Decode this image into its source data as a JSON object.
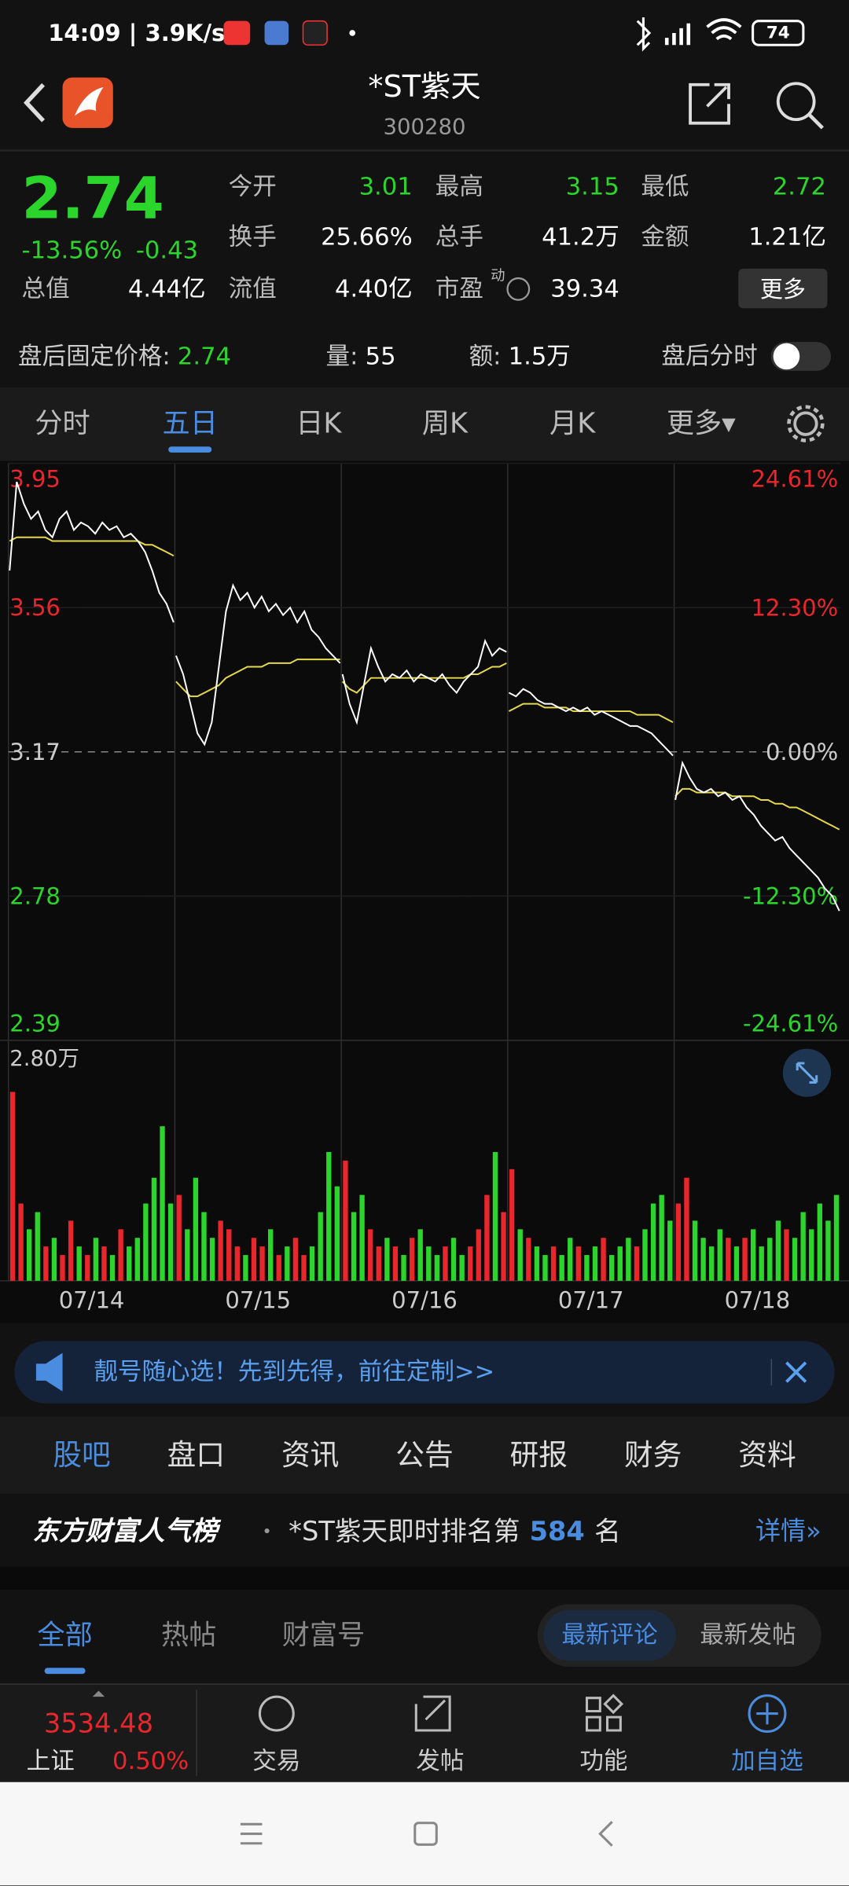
{
  "status_bar": {
    "time": "14:09 | 3.9K/s",
    "battery": "74"
  },
  "header": {
    "title": "*ST紫天",
    "code": "300280"
  },
  "quote": {
    "price": "2.74",
    "change_pct": "-13.56%",
    "change": "-0.43",
    "total_label": "总值",
    "total_value": "4.44亿",
    "fields": [
      {
        "label": "今开",
        "value": "3.01",
        "color": "#2bd52b"
      },
      {
        "label": "最高",
        "value": "3.15",
        "color": "#2bd52b"
      },
      {
        "label": "最低",
        "value": "2.72",
        "color": "#2bd52b"
      },
      {
        "label": "换手",
        "value": "25.66%",
        "color": "#ffffff"
      },
      {
        "label": "总手",
        "value": "41.2万",
        "color": "#ffffff"
      },
      {
        "label": "金额",
        "value": "1.21亿",
        "color": "#ffffff"
      },
      {
        "label": "流值",
        "value": "4.40亿",
        "color": "#ffffff"
      },
      {
        "label": "市盈",
        "value": "39.34",
        "color": "#ffffff"
      }
    ],
    "pe_mark": "动",
    "more": "更多"
  },
  "after_hours": {
    "items": [
      {
        "label": "盘后固定价格:",
        "value": "2.74",
        "color": "#2bd52b"
      },
      {
        "label": "量:",
        "value": "55",
        "color": "#ffffff"
      },
      {
        "label": "额:",
        "value": "1.5万",
        "color": "#ffffff"
      }
    ],
    "toggle_label": "盘后分时"
  },
  "chart_tabs": {
    "items": [
      "分时",
      "五日",
      "日K",
      "周K",
      "月K",
      "更多▾"
    ],
    "active": 1
  },
  "chart_data": {
    "type": "intraday",
    "ylim": [
      2.39,
      3.95
    ],
    "yticks": [
      3.95,
      3.56,
      3.17,
      2.78,
      2.39
    ],
    "y2lim": [
      -24.61,
      24.61
    ],
    "y2ticks": [
      {
        "value": 24.61,
        "label": "24.61%"
      },
      {
        "value": 12.3,
        "label": "12.30%"
      },
      {
        "value": 0,
        "label": "0.00%"
      },
      {
        "value": -12.3,
        "label": "-12.30%"
      },
      {
        "value": -24.61,
        "label": "-24.61%"
      }
    ],
    "volume_ylim": [
      0,
      28000
    ],
    "volume_yticks": [
      {
        "value": 28000,
        "label": "2.80万"
      }
    ],
    "price_color": "#ffffff",
    "avg_color": "#e6d84a",
    "rise_color": "#e8262b",
    "fall_color": "#2bd52b",
    "days": [
      {
        "label": "07/14",
        "price": [
          3.66,
          3.9,
          3.84,
          3.8,
          3.82,
          3.77,
          3.75,
          3.8,
          3.82,
          3.77,
          3.79,
          3.78,
          3.76,
          3.79,
          3.77,
          3.78,
          3.75,
          3.76,
          3.74,
          3.71,
          3.66,
          3.6,
          3.57,
          3.52
        ],
        "avg": [
          3.74,
          3.75,
          3.75,
          3.75,
          3.75,
          3.75,
          3.74,
          3.74,
          3.74,
          3.74,
          3.74,
          3.74,
          3.74,
          3.74,
          3.74,
          3.74,
          3.74,
          3.74,
          3.74,
          3.73,
          3.73,
          3.72,
          3.71,
          3.7
        ],
        "volume": [
          22000,
          9000,
          6000,
          8000,
          4000,
          5000,
          3000,
          7000,
          4000,
          3000,
          5000,
          4000,
          3000,
          6000,
          4000,
          5000,
          9000,
          12000,
          18000,
          9000
        ]
      },
      {
        "label": "07/15",
        "price": [
          3.43,
          3.38,
          3.3,
          3.22,
          3.19,
          3.25,
          3.4,
          3.55,
          3.62,
          3.58,
          3.6,
          3.56,
          3.59,
          3.55,
          3.57,
          3.54,
          3.56,
          3.52,
          3.55,
          3.5,
          3.48,
          3.45,
          3.43,
          3.41
        ],
        "avg": [
          3.36,
          3.34,
          3.32,
          3.32,
          3.33,
          3.34,
          3.35,
          3.37,
          3.38,
          3.39,
          3.4,
          3.4,
          3.4,
          3.41,
          3.41,
          3.41,
          3.41,
          3.42,
          3.42,
          3.42,
          3.42,
          3.42,
          3.42,
          3.42
        ],
        "volume": [
          10000,
          6000,
          12000,
          8000,
          5000,
          7000,
          6000,
          4000,
          3000,
          5000,
          4000,
          6000,
          3000,
          4000,
          5000,
          3000,
          4000,
          8000,
          15000,
          11000
        ]
      },
      {
        "label": "07/16",
        "price": [
          3.38,
          3.3,
          3.25,
          3.35,
          3.45,
          3.4,
          3.36,
          3.38,
          3.37,
          3.39,
          3.36,
          3.38,
          3.37,
          3.36,
          3.38,
          3.35,
          3.33,
          3.36,
          3.38,
          3.4,
          3.47,
          3.43,
          3.45,
          3.44
        ],
        "avg": [
          3.36,
          3.34,
          3.33,
          3.35,
          3.37,
          3.37,
          3.37,
          3.37,
          3.37,
          3.37,
          3.37,
          3.37,
          3.37,
          3.37,
          3.37,
          3.37,
          3.37,
          3.37,
          3.38,
          3.38,
          3.39,
          3.4,
          3.4,
          3.41
        ],
        "volume": [
          14000,
          8000,
          10000,
          6000,
          4000,
          5000,
          4000,
          3000,
          5000,
          6000,
          4000,
          3000,
          4000,
          5000,
          3000,
          4000,
          6000,
          10000,
          15000,
          8000
        ]
      },
      {
        "label": "07/17",
        "price": [
          3.33,
          3.32,
          3.34,
          3.33,
          3.31,
          3.3,
          3.3,
          3.29,
          3.28,
          3.29,
          3.28,
          3.29,
          3.27,
          3.28,
          3.27,
          3.26,
          3.25,
          3.24,
          3.24,
          3.23,
          3.22,
          3.2,
          3.18,
          3.16
        ],
        "avg": [
          3.28,
          3.29,
          3.3,
          3.3,
          3.3,
          3.29,
          3.29,
          3.29,
          3.29,
          3.28,
          3.28,
          3.28,
          3.28,
          3.28,
          3.28,
          3.28,
          3.28,
          3.28,
          3.27,
          3.27,
          3.27,
          3.27,
          3.26,
          3.25
        ],
        "volume": [
          13000,
          6000,
          5000,
          4000,
          3000,
          4000,
          3000,
          5000,
          4000,
          3000,
          4000,
          5000,
          3000,
          4000,
          5000,
          4000,
          6000,
          9000,
          10000,
          7000
        ]
      },
      {
        "label": "07/18",
        "price": [
          3.04,
          3.14,
          3.1,
          3.07,
          3.06,
          3.07,
          3.05,
          3.06,
          3.04,
          3.05,
          3.02,
          3.0,
          2.97,
          2.95,
          2.93,
          2.94,
          2.91,
          2.89,
          2.87,
          2.85,
          2.83,
          2.8,
          2.78,
          2.74
        ],
        "avg": [
          3.05,
          3.07,
          3.07,
          3.06,
          3.06,
          3.06,
          3.06,
          3.06,
          3.05,
          3.05,
          3.05,
          3.05,
          3.04,
          3.04,
          3.03,
          3.03,
          3.02,
          3.02,
          3.01,
          3.0,
          2.99,
          2.98,
          2.97,
          2.96
        ],
        "volume": [
          9000,
          12000,
          7000,
          5000,
          4000,
          6000,
          5000,
          4000,
          5000,
          6000,
          4000,
          5000,
          7000,
          6000,
          5000,
          8000,
          6000,
          9000,
          7000,
          10000
        ]
      }
    ]
  },
  "banner": {
    "text": "靓号随心选！先到先得，前往定制>>"
  },
  "section_tabs": {
    "items": [
      "股吧",
      "盘口",
      "资讯",
      "公告",
      "研报",
      "财务",
      "资料"
    ],
    "active": 0
  },
  "ranking": {
    "title": "东方财富人气榜",
    "prefix": "*ST紫天即时排名第",
    "rank": "584",
    "suffix": "名",
    "details": "详情»"
  },
  "sub_tabs": {
    "items": [
      "全部",
      "热帖",
      "财富号"
    ],
    "active": 0
  },
  "sort_tabs": {
    "items": [
      "最新评论",
      "最新发帖"
    ],
    "active": 0
  },
  "bottom_nav": {
    "index_value": "3534.48",
    "index_name": "上证",
    "index_change": "0.50%",
    "items": [
      "交易",
      "发帖",
      "功能",
      "加自选"
    ]
  }
}
